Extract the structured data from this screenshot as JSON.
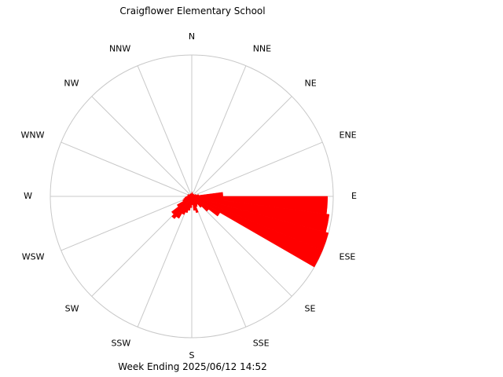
{
  "chart_data": {
    "type": "polar-bar",
    "title": "Craigflower Elementary School",
    "footer": "Week Ending 2025/06/12 14:52",
    "directions": [
      "N",
      "NNE",
      "NE",
      "ENE",
      "E",
      "ESE",
      "SE",
      "SSE",
      "S",
      "SSW",
      "SW",
      "WSW",
      "W",
      "WNW",
      "NW",
      "NNW"
    ],
    "sectors_per_direction": 3,
    "rmax": 100,
    "bar_color": "#ff0000",
    "grid_color": "#c8c8c8",
    "values": [
      3,
      2,
      2,
      2,
      2,
      2,
      2,
      2,
      3,
      3,
      5,
      22,
      96,
      98,
      100,
      100,
      23,
      15,
      10,
      7,
      8,
      12,
      10,
      6,
      8,
      10,
      12,
      14,
      18,
      20,
      18,
      12,
      7,
      6,
      5,
      4,
      3,
      3,
      3,
      3,
      2,
      2,
      2,
      2,
      2,
      2,
      2,
      2
    ]
  }
}
